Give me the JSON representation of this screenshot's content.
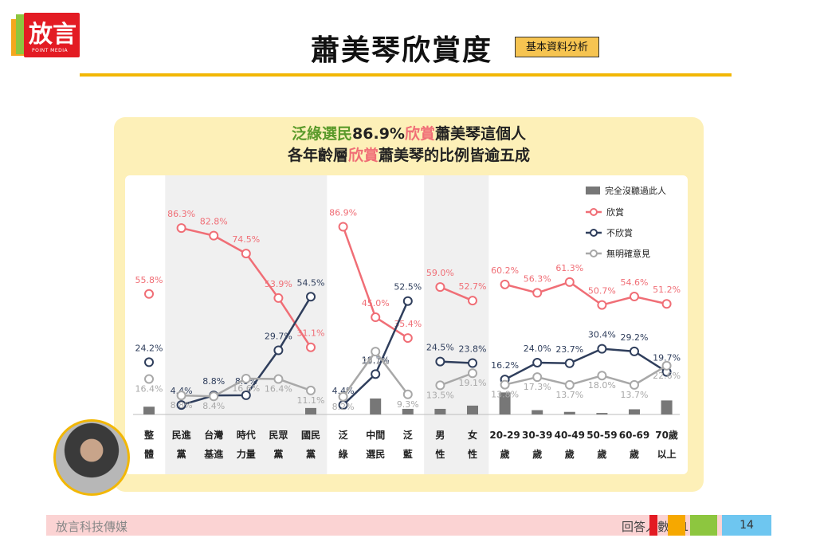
{
  "logo": {
    "text": "放言",
    "sub": "POINT MEDIA"
  },
  "page_title": "蕭美琴欣賞度",
  "title_tag": "基本資料分析",
  "headline": {
    "line1_a": "泛綠選民",
    "line1_b": "86.9%",
    "line1_c": "欣賞",
    "line1_d": "蕭美琴這個人",
    "line2_a": "各年齡層",
    "line2_b": "欣賞",
    "line2_c": "蕭美琴的比例皆逾五成"
  },
  "footer": {
    "left": "放言科技傳媒",
    "right": "回答人數：1,075",
    "page": "14"
  },
  "colors": {
    "appreciate": "#f06e76",
    "not_appreciate": "#2f3e5c",
    "no_opinion": "#a8a8a8",
    "bar": "#777777",
    "band": "#f0f0f0"
  },
  "chart_data": {
    "type": "line",
    "categories": [
      {
        "top": "整",
        "bottom": "體"
      },
      {
        "top": "民進",
        "bottom": "黨"
      },
      {
        "top": "台灣",
        "bottom": "基進"
      },
      {
        "top": "時代",
        "bottom": "力量"
      },
      {
        "top": "民眾",
        "bottom": "黨"
      },
      {
        "top": "國民",
        "bottom": "黨"
      },
      {
        "top": "泛",
        "bottom": "綠"
      },
      {
        "top": "中間",
        "bottom": "選民"
      },
      {
        "top": "泛",
        "bottom": "藍"
      },
      {
        "top": "男",
        "bottom": "性"
      },
      {
        "top": "女",
        "bottom": "性"
      },
      {
        "top": "20-29",
        "bottom": "歲"
      },
      {
        "top": "30-39",
        "bottom": "歲"
      },
      {
        "top": "40-49",
        "bottom": "歲"
      },
      {
        "top": "50-59",
        "bottom": "歲"
      },
      {
        "top": "60-69",
        "bottom": "歲"
      },
      {
        "top": "70歲",
        "bottom": "以上"
      }
    ],
    "groups": [
      [
        0
      ],
      [
        1,
        2,
        3,
        4,
        5
      ],
      [
        6,
        7,
        8
      ],
      [
        9,
        10
      ],
      [
        11,
        12,
        13,
        14,
        15,
        16
      ]
    ],
    "legend": [
      "完全沒聽過此人",
      "欣賞",
      "不欣賞",
      "無明確意見"
    ],
    "legend_position": "top-right",
    "bars": [
      3.6,
      null,
      null,
      null,
      null,
      3.0,
      null,
      7.4,
      2.6,
      2.6,
      4.1,
      10.2,
      2.0,
      1.2,
      0.7,
      2.4,
      6.5
    ],
    "series": [
      {
        "key": "appreciate",
        "values": [
          55.8,
          86.3,
          82.8,
          74.5,
          53.9,
          31.1,
          86.9,
          45.0,
          35.4,
          59.0,
          52.7,
          60.2,
          56.3,
          61.3,
          50.7,
          54.6,
          51.2
        ],
        "labels": [
          "55.8%",
          "86.3%",
          "82.8%",
          "74.5%",
          "53.9%",
          "31.1%",
          "86.9%",
          "45.0%",
          "35.4%",
          "59.0%",
          "52.7%",
          "60.2%",
          "56.3%",
          "61.3%",
          "50.7%",
          "54.6%",
          "51.2%"
        ]
      },
      {
        "key": "not_appreciate",
        "values": [
          24.2,
          4.4,
          8.8,
          8.9,
          29.7,
          54.5,
          4.4,
          18.7,
          52.5,
          24.5,
          23.8,
          16.2,
          24.0,
          23.7,
          30.4,
          29.2,
          19.7
        ],
        "labels": [
          "24.2%",
          "4.4%",
          "8.8%",
          "8.9%",
          "29.7%",
          "54.5%",
          "4.4%",
          "18.7%",
          "52.5%",
          "24.5%",
          "23.8%",
          "16.2%",
          "24.0%",
          "23.7%",
          "30.4%",
          "29.2%",
          "19.7%"
        ]
      },
      {
        "key": "no_opinion",
        "values": [
          16.4,
          8.8,
          8.4,
          16.6,
          16.4,
          11.1,
          8.2,
          29.1,
          9.3,
          13.5,
          19.1,
          13.8,
          17.3,
          13.7,
          18.0,
          13.7,
          22.6
        ],
        "labels": [
          "16.4%",
          "8.8%",
          "8.4%",
          "16.6%",
          "16.4%",
          "11.1%",
          "8.2%",
          "29.1%",
          "9.3%",
          "13.5%",
          "19.1%",
          "13.8%",
          "17.3%",
          "13.7%",
          "18.0%",
          "13.7%",
          "22.6%"
        ]
      }
    ],
    "ylim": [
      0,
      100
    ]
  }
}
